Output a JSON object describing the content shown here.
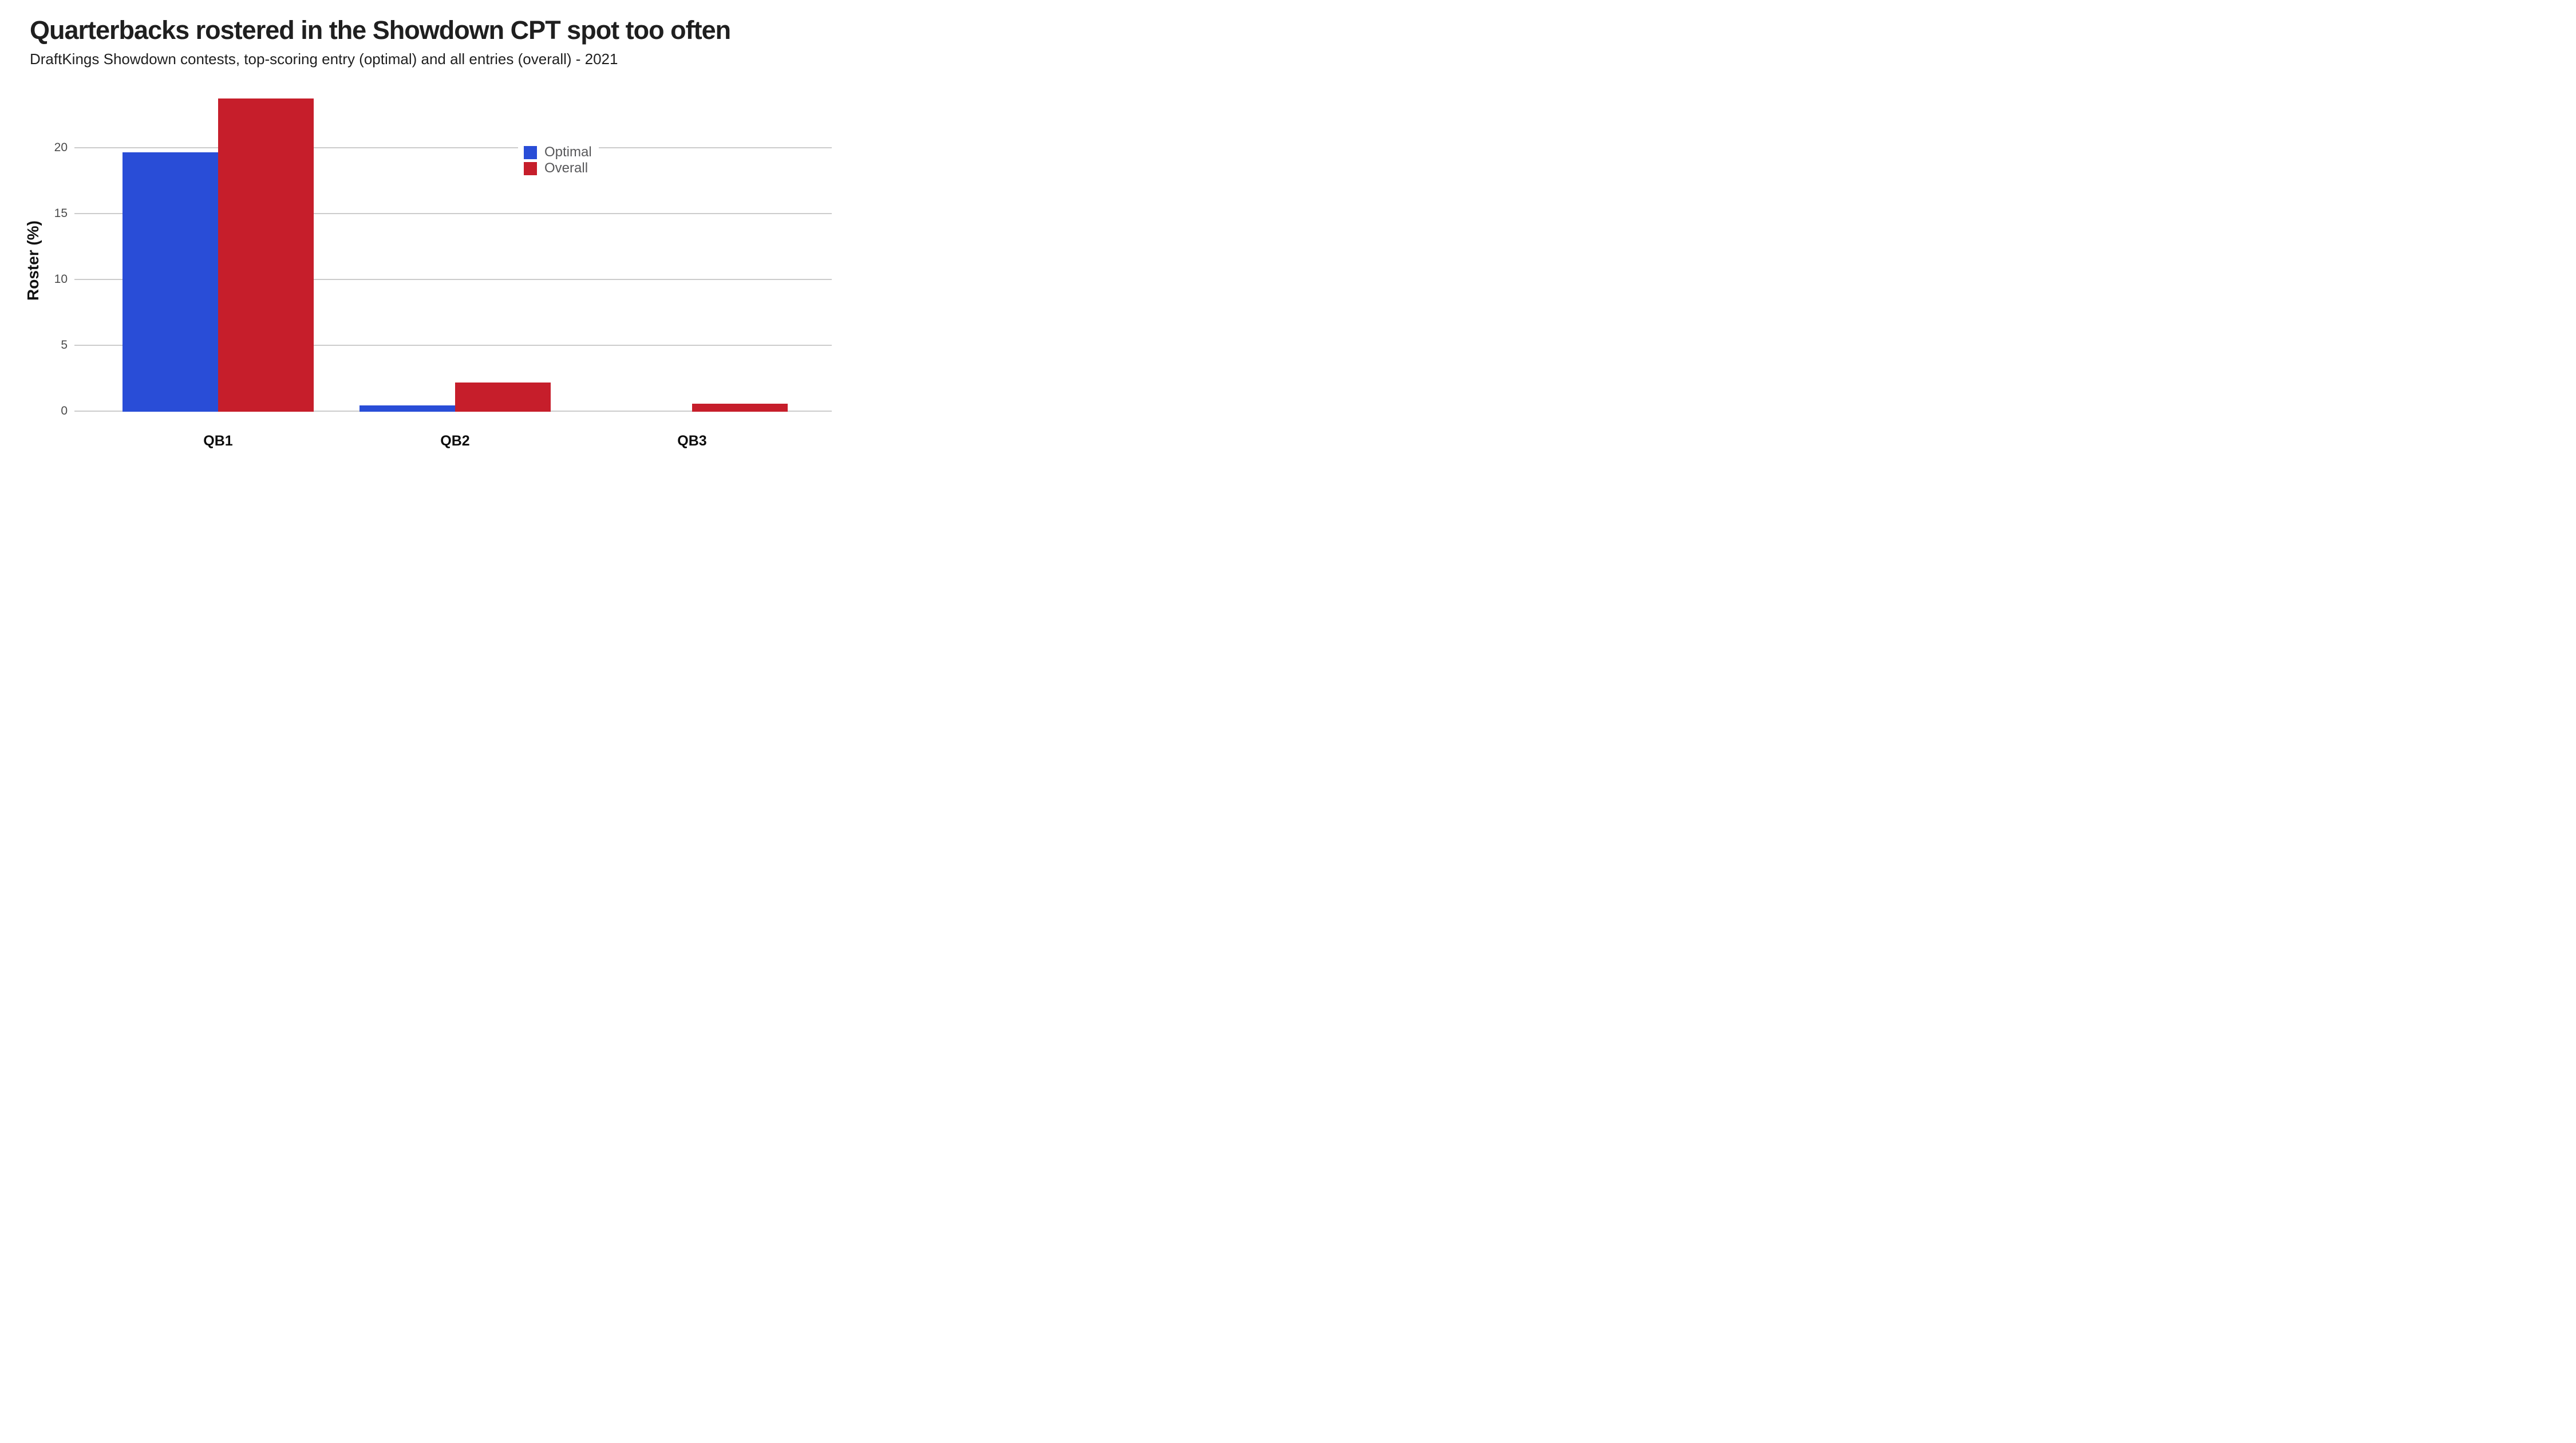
{
  "chart_data": {
    "type": "bar",
    "title": "Quarterbacks rostered in the Showdown CPT spot too often",
    "subtitle": "DraftKings Showdown contests, top-scoring entry (optimal) and all entries (overall) - 2021",
    "categories": [
      "QB1",
      "QB2",
      "QB3"
    ],
    "series": [
      {
        "name": "Optimal",
        "color": "#294dd7",
        "values": [
          19.7,
          0.5,
          0.0
        ]
      },
      {
        "name": "Overall",
        "color": "#c61e2b",
        "values": [
          23.8,
          2.2,
          0.6
        ]
      }
    ],
    "xlabel": "",
    "ylabel": "Roster (%)",
    "yticks": [
      0,
      5,
      10,
      15,
      20
    ],
    "ylim": [
      0,
      24.6
    ],
    "grid": true,
    "gridline_color": "#cccccc",
    "legend_position": "inside-top-right",
    "background_color": "#ffffff",
    "tick_label_color": "#4b4b4b",
    "legend_text_color": "#58585a",
    "title_color": "#1f1f1f"
  }
}
